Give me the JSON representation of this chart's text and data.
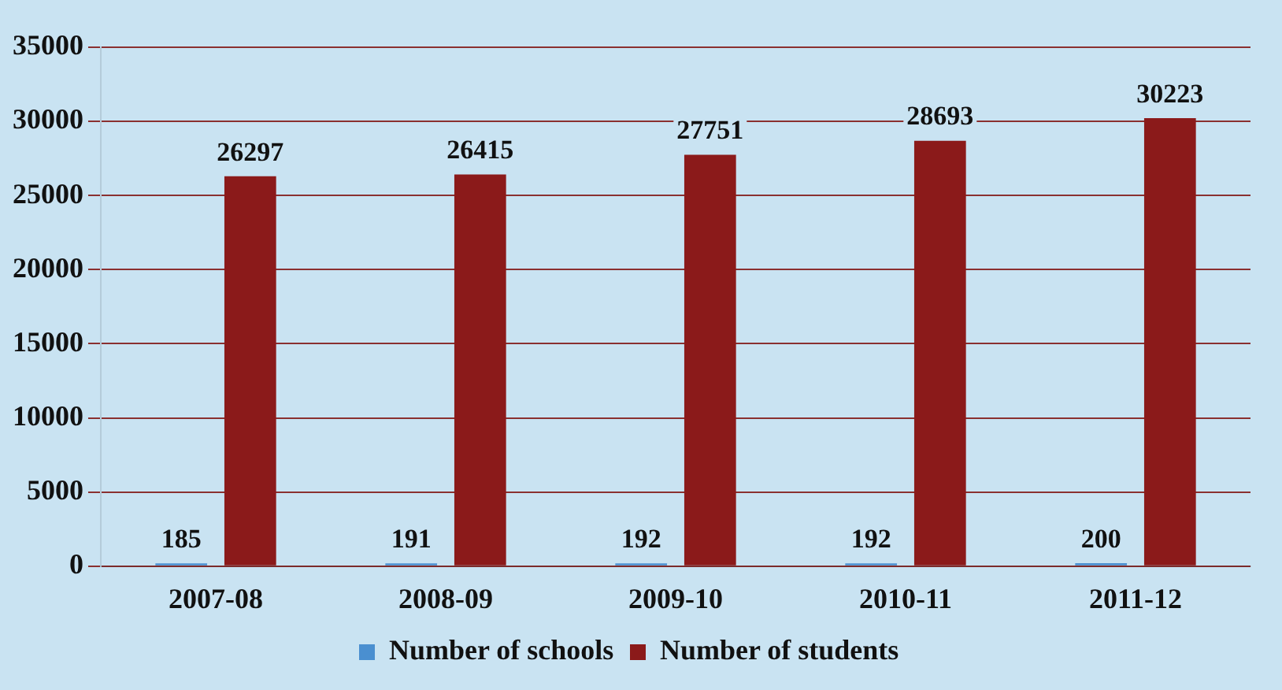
{
  "chart_data": {
    "type": "bar",
    "categories": [
      "2007-08",
      "2008-09",
      "2009-10",
      "2010-11",
      "2011-12"
    ],
    "series": [
      {
        "name": "Number of schools",
        "color": "#4a8fd0",
        "values": [
          185,
          191,
          192,
          192,
          200
        ]
      },
      {
        "name": "Number of students",
        "color": "#8b1a1a",
        "values": [
          26297,
          26415,
          27751,
          28693,
          30223
        ]
      }
    ],
    "ylim": [
      0,
      35000
    ],
    "yticks": [
      0,
      5000,
      10000,
      15000,
      20000,
      25000,
      30000,
      35000
    ],
    "grid": "y",
    "legend": "bottom",
    "data_labels": true
  }
}
